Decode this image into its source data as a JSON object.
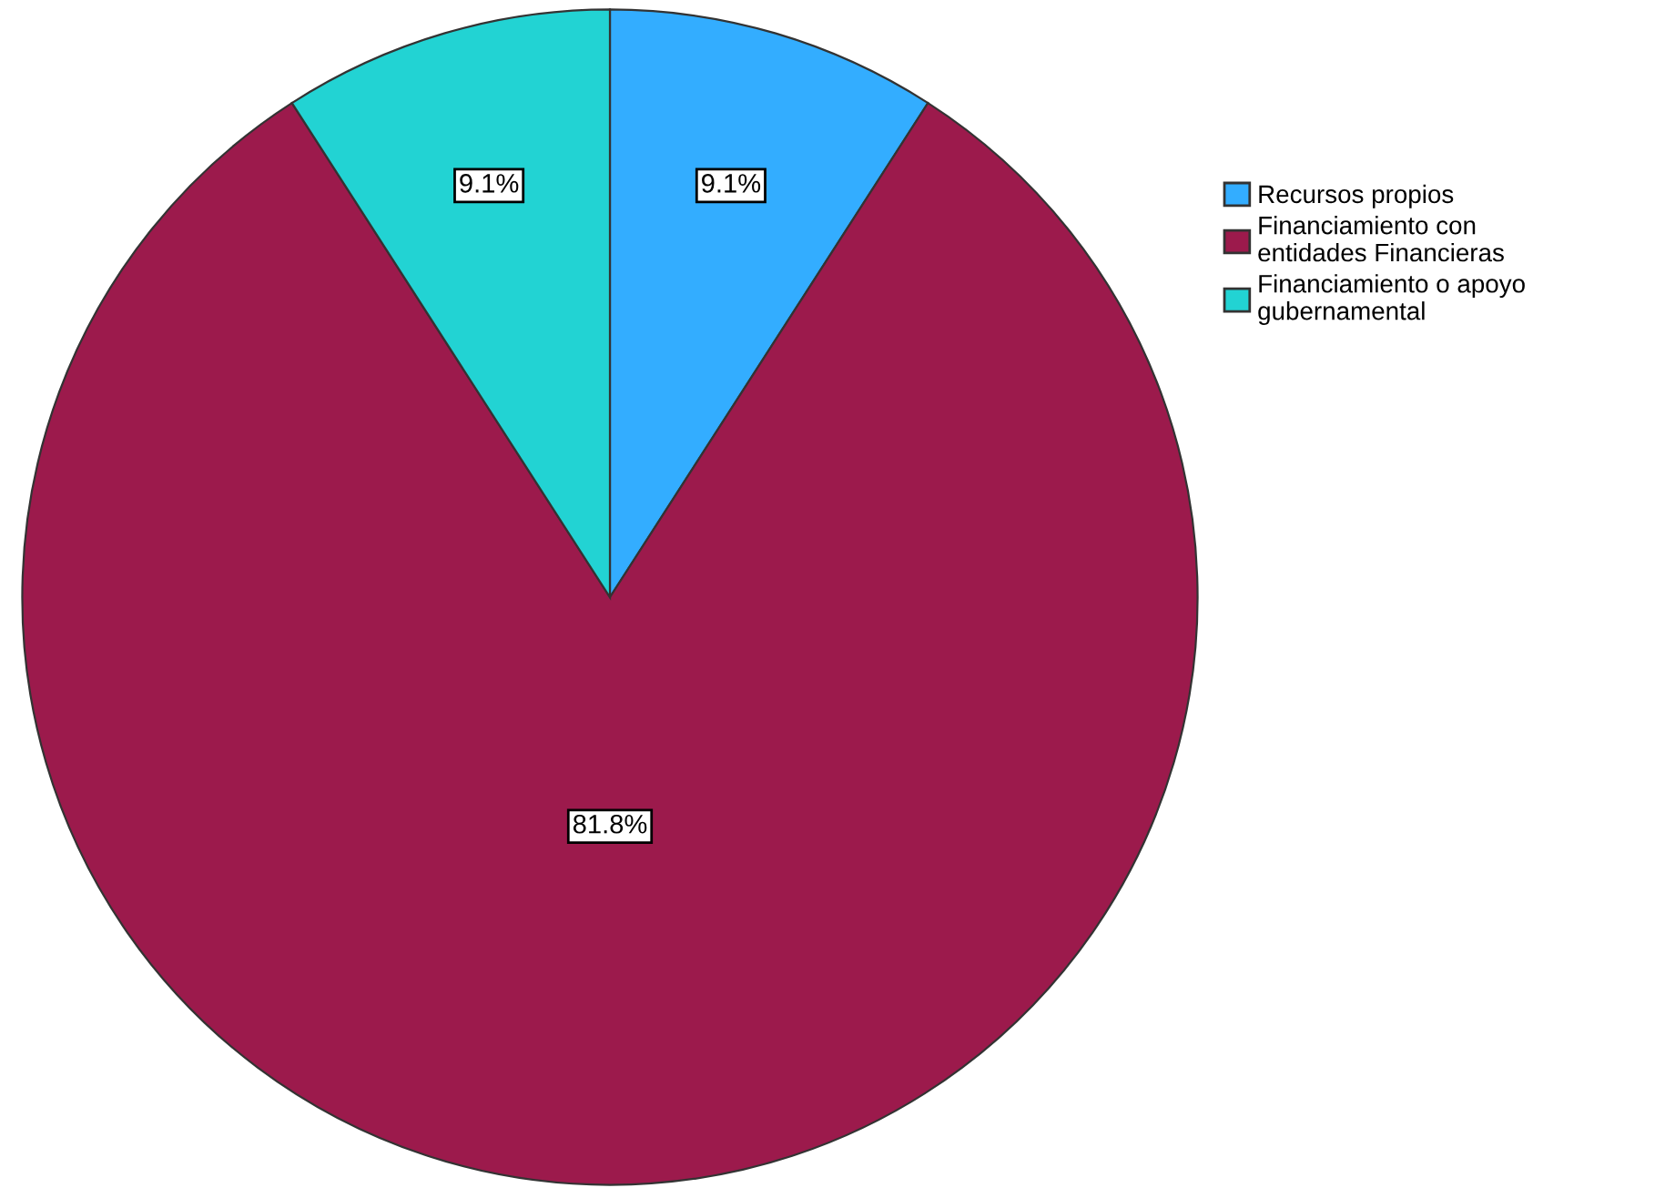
{
  "chart_data": {
    "type": "pie",
    "categories": [
      "Recursos propios",
      "Financiamiento con\nentidades Financieras",
      "Financiamiento o apoyo\ngubernamental"
    ],
    "values": [
      9.1,
      81.8,
      9.1
    ],
    "colors": [
      "#33adff",
      "#9c1a4c",
      "#22d3d3"
    ],
    "value_labels": [
      "9.1%",
      "81.8%",
      "9.1%"
    ],
    "legend": "top right"
  }
}
